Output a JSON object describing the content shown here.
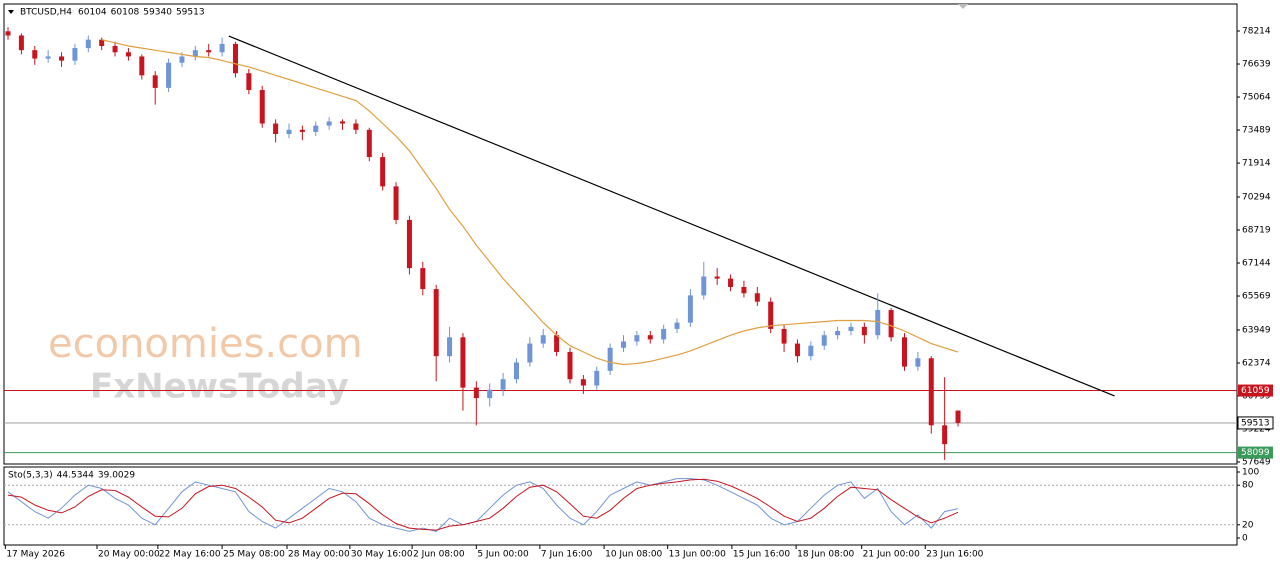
{
  "chart_data": {
    "type": "candlestick",
    "symbol": "BTCUSD,H4",
    "candles": [
      [
        78200,
        78400,
        77800,
        78000
      ],
      [
        78000,
        78100,
        77100,
        77300
      ],
      [
        77300,
        77500,
        76600,
        76900
      ],
      [
        76900,
        77300,
        76700,
        77000
      ],
      [
        77000,
        77200,
        76500,
        76800
      ],
      [
        76800,
        77600,
        76600,
        77400
      ],
      [
        77400,
        78000,
        77200,
        77800
      ],
      [
        77800,
        77900,
        77300,
        77500
      ],
      [
        77500,
        77700,
        77000,
        77200
      ],
      [
        77200,
        77400,
        76800,
        77000
      ],
      [
        77000,
        77100,
        75900,
        76100
      ],
      [
        76100,
        76300,
        74700,
        75500
      ],
      [
        75500,
        76900,
        75300,
        76700
      ],
      [
        76700,
        77200,
        76500,
        77000
      ],
      [
        77000,
        77500,
        76800,
        77300
      ],
      [
        77300,
        77600,
        77000,
        77200
      ],
      [
        77200,
        77900,
        77000,
        77600
      ],
      [
        77600,
        77700,
        76000,
        76200
      ],
      [
        76200,
        76400,
        75200,
        75400
      ],
      [
        75400,
        75600,
        73600,
        73800
      ],
      [
        73800,
        74000,
        72900,
        73300
      ],
      [
        73300,
        73800,
        73100,
        73500
      ],
      [
        73500,
        73700,
        73000,
        73400
      ],
      [
        73400,
        73900,
        73200,
        73700
      ],
      [
        73700,
        74100,
        73500,
        73900
      ],
      [
        73900,
        74000,
        73500,
        73800
      ],
      [
        73800,
        74000,
        73300,
        73500
      ],
      [
        73500,
        73600,
        72000,
        72200
      ],
      [
        72200,
        72400,
        70600,
        70800
      ],
      [
        70800,
        71000,
        69000,
        69200
      ],
      [
        69200,
        69400,
        66600,
        66900
      ],
      [
        66900,
        67200,
        65600,
        65900
      ],
      [
        65900,
        66100,
        61500,
        62700
      ],
      [
        62700,
        64100,
        62400,
        63600
      ],
      [
        63600,
        63800,
        60100,
        61200
      ],
      [
        61200,
        61500,
        59400,
        60700
      ],
      [
        60700,
        61400,
        60300,
        61100
      ],
      [
        61100,
        61900,
        60800,
        61600
      ],
      [
        61600,
        62600,
        61400,
        62400
      ],
      [
        62400,
        63600,
        62200,
        63300
      ],
      [
        63300,
        64000,
        63100,
        63700
      ],
      [
        63700,
        63900,
        62700,
        62900
      ],
      [
        62900,
        63100,
        61400,
        61600
      ],
      [
        61600,
        61800,
        60900,
        61300
      ],
      [
        61300,
        62200,
        61100,
        62000
      ],
      [
        62000,
        63300,
        61800,
        63100
      ],
      [
        63100,
        63700,
        62900,
        63400
      ],
      [
        63400,
        63900,
        63200,
        63700
      ],
      [
        63700,
        63900,
        63300,
        63500
      ],
      [
        63500,
        64200,
        63300,
        64000
      ],
      [
        64000,
        64500,
        63800,
        64300
      ],
      [
        64300,
        65900,
        64100,
        65600
      ],
      [
        65600,
        67200,
        65400,
        66500
      ],
      [
        66500,
        66900,
        66100,
        66400
      ],
      [
        66400,
        66600,
        65800,
        66000
      ],
      [
        66000,
        66300,
        65500,
        65700
      ],
      [
        65700,
        66000,
        65100,
        65300
      ],
      [
        65300,
        65500,
        63800,
        64000
      ],
      [
        64000,
        64200,
        62900,
        63300
      ],
      [
        63300,
        63500,
        62400,
        62700
      ],
      [
        62700,
        63400,
        62500,
        63200
      ],
      [
        63200,
        63900,
        63000,
        63700
      ],
      [
        63700,
        64100,
        63500,
        63900
      ],
      [
        63900,
        64300,
        63700,
        64100
      ],
      [
        64100,
        64300,
        63300,
        63700
      ],
      [
        63700,
        65700,
        63500,
        64900
      ],
      [
        64900,
        65000,
        63400,
        63600
      ],
      [
        63600,
        63800,
        62000,
        62200
      ],
      [
        62200,
        62900,
        62000,
        62600
      ],
      [
        62600,
        62700,
        59000,
        59400
      ],
      [
        59400,
        61700,
        57750,
        58500
      ],
      [
        60104,
        60108,
        59340,
        59513
      ]
    ],
    "up_color": "#6f95d6",
    "down_color": "#c8141e",
    "ma": {
      "color": "#e0a040",
      "values": [
        null,
        null,
        null,
        null,
        null,
        null,
        null,
        77800,
        77650,
        77500,
        77400,
        77300,
        77200,
        77100,
        77000,
        76950,
        76800,
        76650,
        76500,
        76300,
        76100,
        75900,
        75700,
        75500,
        75300,
        75100,
        74900,
        74400,
        73800,
        73200,
        72500,
        71600,
        70700,
        69700,
        68900,
        68000,
        67200,
        66400,
        65700,
        65000,
        64300,
        63700,
        63200,
        62900,
        62600,
        62400,
        62300,
        62350,
        62450,
        62600,
        62750,
        62950,
        63200,
        63450,
        63700,
        63900,
        64050,
        64150,
        64200,
        64250,
        64300,
        64350,
        64400,
        64400,
        64400,
        64350,
        64150,
        63900,
        63600,
        63300,
        63100,
        62900
      ]
    },
    "trendline": {
      "color": "#000000",
      "x": [
        16.5,
        82.7
      ],
      "values": [
        77975,
        60799
      ]
    },
    "levels": [
      {
        "value": 61059,
        "color": "#c8141e"
      },
      {
        "value": 58099,
        "color": "#3a9a5a"
      }
    ],
    "current_price_color": "#a0a0a0",
    "xlim": [
      -0.3,
      91.85
    ],
    "ylim": [
      57554,
      79503
    ],
    "yticks": [
      78214,
      76639,
      75064,
      73489,
      71914,
      70294,
      68719,
      67144,
      65569,
      63949,
      62374,
      60799,
      59224,
      57649
    ],
    "xticks": [
      {
        "value": -0.2,
        "label": "17 May 2026"
      },
      {
        "value": 6.65,
        "label": "20 May 00:00"
      },
      {
        "value": 11.2,
        "label": "22 May 16:00"
      },
      {
        "value": 16.0,
        "label": "25 May 08:00"
      },
      {
        "value": 20.85,
        "label": "28 May 00:00"
      },
      {
        "value": 25.55,
        "label": "30 May 16:00"
      },
      {
        "value": 30.2,
        "label": "2 Jun 08:00"
      },
      {
        "value": 35.0,
        "label": "5 Jun 00:00"
      },
      {
        "value": 39.75,
        "label": "7 Jun 16:00"
      },
      {
        "value": 44.55,
        "label": "10 Jun 08:00"
      },
      {
        "value": 49.3,
        "label": "13 Jun 00:00"
      },
      {
        "value": 54.1,
        "label": "15 Jun 16:00"
      },
      {
        "value": 58.9,
        "label": "18 Jun 08:00"
      },
      {
        "value": 63.8,
        "label": "21 Jun 00:00"
      },
      {
        "value": 68.55,
        "label": "23 Jun 16:00"
      }
    ],
    "stochastic": {
      "name": "Sto(5,3,3)",
      "ylim": [
        0,
        100
      ],
      "yticks": [
        100,
        80,
        20,
        0
      ],
      "levels": [
        80,
        20
      ],
      "series": [
        {
          "color": "#6f95d6",
          "values": [
            70,
            55,
            40,
            30,
            45,
            65,
            80,
            75,
            60,
            50,
            30,
            20,
            45,
            70,
            85,
            80,
            75,
            70,
            40,
            25,
            15,
            30,
            45,
            60,
            75,
            70,
            55,
            30,
            20,
            15,
            10,
            15,
            10,
            30,
            20,
            25,
            45,
            65,
            80,
            85,
            75,
            50,
            30,
            20,
            40,
            65,
            75,
            85,
            80,
            85,
            90,
            90,
            88,
            80,
            70,
            60,
            50,
            30,
            20,
            25,
            45,
            65,
            80,
            85,
            60,
            75,
            40,
            20,
            35,
            15,
            40,
            44.5344
          ]
        },
        {
          "color": "#c8141e",
          "values": [
            65,
            62,
            50,
            42,
            38,
            47,
            63,
            73,
            72,
            62,
            47,
            33,
            32,
            45,
            67,
            78,
            80,
            75,
            62,
            47,
            27,
            23,
            30,
            45,
            60,
            68,
            67,
            52,
            35,
            22,
            15,
            13,
            12,
            18,
            20,
            25,
            30,
            45,
            63,
            77,
            80,
            70,
            52,
            33,
            30,
            42,
            60,
            75,
            80,
            83,
            85,
            88,
            89,
            86,
            79,
            70,
            60,
            47,
            33,
            25,
            30,
            45,
            63,
            77,
            75,
            73,
            58,
            45,
            32,
            23,
            30,
            39.0029
          ]
        }
      ]
    },
    "watermarks": [
      "economies.com",
      "FxNewsToday"
    ]
  }
}
